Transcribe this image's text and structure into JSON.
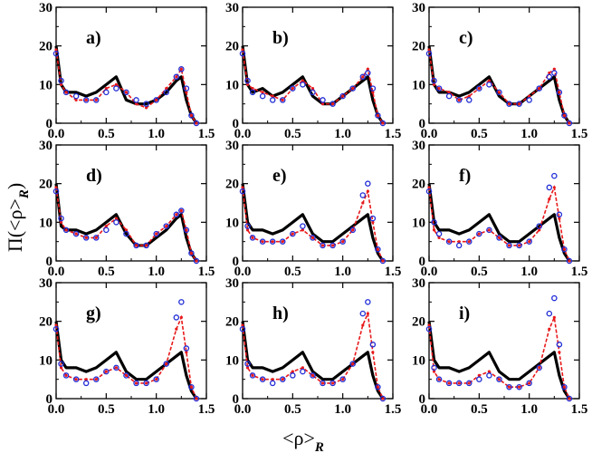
{
  "chart_data": {
    "type": "line",
    "grid": false,
    "layout": "3x3 panels",
    "xlabel_main": "<ρ>",
    "xlabel_sub": "R",
    "ylabel_main": "Π(<ρ>",
    "ylabel_sub": "R",
    "ylabel_close": ")",
    "xlim": [
      0,
      1.5
    ],
    "ylim": [
      0,
      30
    ],
    "xticks": [
      "0.0",
      "0.5",
      "1.0",
      "1.5"
    ],
    "yticks": [
      "0",
      "10",
      "20",
      "30"
    ],
    "series_styles": [
      {
        "name": "black",
        "color": "#000000",
        "style": "thick solid line"
      },
      {
        "name": "red",
        "color": "#e8191b",
        "style": "dashed with small markers"
      },
      {
        "name": "blue",
        "color": "#1f2bd6",
        "style": "open circles"
      }
    ],
    "panels": [
      {
        "label": "a)",
        "x": [
          0.0,
          0.05,
          0.1,
          0.2,
          0.3,
          0.4,
          0.5,
          0.6,
          0.7,
          0.8,
          0.9,
          1.0,
          1.1,
          1.2,
          1.25,
          1.3,
          1.35,
          1.4
        ],
        "black": [
          20,
          10,
          8,
          8,
          7,
          8,
          10,
          12,
          6,
          5,
          5,
          6,
          8,
          11,
          12,
          6,
          2,
          0
        ],
        "red": [
          19,
          10,
          8,
          6,
          6,
          6,
          9,
          10,
          8,
          5,
          4,
          6,
          9,
          12,
          14,
          8,
          2,
          0
        ],
        "blue": [
          18,
          11,
          8,
          7,
          6,
          6,
          8,
          9,
          8,
          6,
          5,
          6,
          8,
          12,
          14,
          9,
          2,
          0
        ]
      },
      {
        "label": "b)",
        "x": [
          0.0,
          0.05,
          0.1,
          0.2,
          0.3,
          0.4,
          0.5,
          0.6,
          0.7,
          0.8,
          0.9,
          1.0,
          1.1,
          1.2,
          1.25,
          1.3,
          1.35,
          1.4
        ],
        "black": [
          20,
          10,
          8,
          9,
          7,
          8,
          10,
          12,
          7,
          5,
          5,
          7,
          9,
          11,
          12,
          6,
          2,
          0
        ],
        "red": [
          19,
          10,
          9,
          8,
          7,
          6,
          9,
          11,
          9,
          5,
          5,
          7,
          9,
          12,
          14,
          8,
          2,
          0
        ],
        "blue": [
          18,
          11,
          8,
          7,
          6,
          6,
          9,
          10,
          8,
          6,
          5,
          7,
          9,
          12,
          13,
          9,
          2,
          0
        ]
      },
      {
        "label": "c)",
        "x": [
          0.0,
          0.05,
          0.1,
          0.2,
          0.3,
          0.4,
          0.5,
          0.6,
          0.7,
          0.8,
          0.9,
          1.0,
          1.1,
          1.2,
          1.25,
          1.3,
          1.35,
          1.4
        ],
        "black": [
          20,
          10,
          8,
          8,
          7,
          8,
          10,
          12,
          7,
          5,
          5,
          7,
          9,
          11,
          12,
          6,
          2,
          0
        ],
        "red": [
          19,
          10,
          9,
          8,
          6,
          7,
          9,
          11,
          8,
          5,
          5,
          7,
          9,
          13,
          14,
          8,
          2,
          0
        ],
        "blue": [
          18,
          11,
          9,
          7,
          6,
          6,
          9,
          10,
          8,
          5,
          5,
          6,
          9,
          12,
          13,
          8,
          2,
          0
        ]
      },
      {
        "label": "d)",
        "x": [
          0.0,
          0.05,
          0.1,
          0.2,
          0.3,
          0.4,
          0.5,
          0.6,
          0.7,
          0.8,
          0.9,
          1.0,
          1.1,
          1.2,
          1.25,
          1.3,
          1.35,
          1.4
        ],
        "black": [
          20,
          9,
          8,
          8,
          7,
          8,
          10,
          12,
          7,
          4,
          4,
          6,
          8,
          11,
          12,
          6,
          2,
          0
        ],
        "red": [
          19,
          10,
          8,
          7,
          6,
          6,
          9,
          11,
          8,
          4,
          4,
          7,
          9,
          12,
          13,
          8,
          2,
          0
        ],
        "blue": [
          18,
          11,
          8,
          7,
          6,
          6,
          8,
          10,
          7,
          4,
          4,
          7,
          9,
          12,
          13,
          8,
          2,
          0
        ]
      },
      {
        "label": "e)",
        "x": [
          0.0,
          0.05,
          0.1,
          0.2,
          0.3,
          0.4,
          0.5,
          0.6,
          0.7,
          0.8,
          0.9,
          1.0,
          1.1,
          1.2,
          1.25,
          1.3,
          1.35,
          1.4
        ],
        "black": [
          20,
          10,
          8,
          8,
          7,
          8,
          10,
          12,
          7,
          5,
          5,
          7,
          9,
          11,
          12,
          6,
          2,
          0
        ],
        "red": [
          19,
          8,
          6,
          5,
          5,
          5,
          7,
          8,
          6,
          4,
          4,
          5,
          8,
          15,
          18,
          10,
          3,
          0
        ],
        "blue": [
          18,
          9,
          6,
          5,
          5,
          5,
          7,
          9,
          6,
          4,
          4,
          5,
          8,
          17,
          20,
          11,
          3,
          0
        ]
      },
      {
        "label": "f)",
        "x": [
          0.0,
          0.05,
          0.1,
          0.2,
          0.3,
          0.4,
          0.5,
          0.6,
          0.7,
          0.8,
          0.9,
          1.0,
          1.1,
          1.2,
          1.25,
          1.3,
          1.35,
          1.4
        ],
        "black": [
          20,
          10,
          8,
          8,
          7,
          8,
          10,
          12,
          7,
          5,
          5,
          7,
          9,
          11,
          12,
          6,
          2,
          0
        ],
        "red": [
          19,
          8,
          6,
          5,
          5,
          5,
          7,
          8,
          6,
          4,
          4,
          5,
          8,
          16,
          19,
          11,
          3,
          0
        ],
        "blue": [
          18,
          10,
          7,
          5,
          4,
          5,
          7,
          8,
          6,
          4,
          4,
          5,
          9,
          19,
          22,
          12,
          3,
          0
        ]
      },
      {
        "label": "g)",
        "x": [
          0.0,
          0.05,
          0.1,
          0.2,
          0.3,
          0.4,
          0.5,
          0.6,
          0.7,
          0.8,
          0.9,
          1.0,
          1.1,
          1.2,
          1.25,
          1.3,
          1.35,
          1.4
        ],
        "black": [
          20,
          10,
          8,
          8,
          7,
          8,
          10,
          12,
          7,
          5,
          5,
          7,
          9,
          11,
          12,
          6,
          2,
          0
        ],
        "red": [
          19,
          8,
          6,
          5,
          5,
          5,
          7,
          8,
          6,
          4,
          4,
          5,
          9,
          18,
          21,
          12,
          3,
          0
        ],
        "blue": [
          18,
          9,
          6,
          5,
          4,
          5,
          7,
          8,
          6,
          4,
          4,
          5,
          9,
          21,
          25,
          13,
          3,
          0
        ]
      },
      {
        "label": "h)",
        "x": [
          0.0,
          0.05,
          0.1,
          0.2,
          0.3,
          0.4,
          0.5,
          0.6,
          0.7,
          0.8,
          0.9,
          1.0,
          1.1,
          1.2,
          1.25,
          1.3,
          1.35,
          1.4
        ],
        "black": [
          20,
          10,
          8,
          8,
          7,
          8,
          10,
          12,
          7,
          5,
          5,
          7,
          9,
          11,
          12,
          6,
          2,
          0
        ],
        "red": [
          19,
          8,
          6,
          5,
          5,
          5,
          7,
          8,
          6,
          4,
          4,
          5,
          9,
          19,
          22,
          12,
          3,
          0
        ],
        "blue": [
          18,
          9,
          6,
          5,
          4,
          5,
          6,
          7,
          6,
          4,
          4,
          5,
          9,
          22,
          25,
          14,
          3,
          0
        ]
      },
      {
        "label": "i)",
        "x": [
          0.0,
          0.05,
          0.1,
          0.2,
          0.3,
          0.4,
          0.5,
          0.6,
          0.7,
          0.8,
          0.9,
          1.0,
          1.1,
          1.2,
          1.25,
          1.3,
          1.35,
          1.4
        ],
        "black": [
          20,
          10,
          8,
          8,
          7,
          8,
          10,
          12,
          7,
          5,
          5,
          7,
          9,
          11,
          12,
          6,
          2,
          0
        ],
        "red": [
          19,
          7,
          5,
          4,
          4,
          4,
          6,
          7,
          5,
          3,
          3,
          4,
          8,
          18,
          21,
          12,
          3,
          0
        ],
        "blue": [
          18,
          8,
          5,
          4,
          4,
          4,
          5,
          6,
          5,
          3,
          3,
          4,
          8,
          22,
          26,
          14,
          3,
          0
        ]
      }
    ]
  }
}
